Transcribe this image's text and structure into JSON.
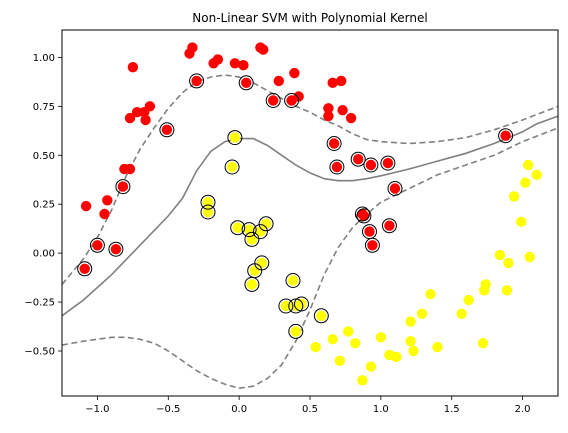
{
  "chart_data": {
    "type": "scatter",
    "title": "Non-Linear SVM with Polynomial Kernel",
    "xlabel": "",
    "ylabel": "",
    "xlim": [
      -1.25,
      2.25
    ],
    "ylim": [
      -0.73,
      1.14
    ],
    "x_ticks": [
      -1.0,
      -0.5,
      0.0,
      0.5,
      1.0,
      1.5,
      2.0
    ],
    "x_tick_labels": [
      "−1.0",
      "−0.5",
      "0.0",
      "0.5",
      "1.0",
      "1.5",
      "2.0"
    ],
    "y_ticks": [
      -0.5,
      -0.25,
      0.0,
      0.25,
      0.5,
      0.75,
      1.0
    ],
    "y_tick_labels": [
      "−0.50",
      "−0.25",
      "0.00",
      "0.25",
      "0.50",
      "0.75",
      "1.00"
    ],
    "grid": false,
    "colors": {
      "class_0": "#ff0000",
      "class_1": "#ffff00",
      "boundary": "#808080"
    },
    "series": [
      {
        "class": 0,
        "color": "#ff0000",
        "points": [
          [
            -1.08,
            0.24
          ],
          [
            -1.0,
            0.04
          ],
          [
            -0.95,
            0.2
          ],
          [
            -0.93,
            0.27
          ],
          [
            -0.87,
            0.02
          ],
          [
            -0.82,
            0.34
          ],
          [
            -0.81,
            0.43
          ],
          [
            -0.77,
            0.43
          ],
          [
            -0.77,
            0.69
          ],
          [
            -0.75,
            0.95
          ],
          [
            -0.72,
            0.72
          ],
          [
            -0.67,
            0.72
          ],
          [
            -0.66,
            0.68
          ],
          [
            -0.63,
            0.75
          ],
          [
            -0.51,
            0.63
          ],
          [
            -0.35,
            1.02
          ],
          [
            -0.33,
            1.05
          ],
          [
            -0.3,
            0.88
          ],
          [
            -0.18,
            0.97
          ],
          [
            -0.15,
            0.99
          ],
          [
            -0.03,
            0.97
          ],
          [
            0.03,
            0.96
          ],
          [
            0.05,
            0.87
          ],
          [
            0.15,
            1.05
          ],
          [
            0.17,
            1.04
          ],
          [
            0.24,
            0.78
          ],
          [
            0.28,
            0.88
          ],
          [
            0.37,
            0.78
          ],
          [
            0.39,
            0.92
          ],
          [
            0.42,
            0.8
          ],
          [
            0.63,
            0.74
          ],
          [
            0.63,
            0.7
          ],
          [
            0.66,
            0.87
          ],
          [
            0.67,
            0.56
          ],
          [
            0.69,
            0.44
          ],
          [
            0.72,
            0.88
          ],
          [
            0.73,
            0.73
          ],
          [
            0.79,
            0.69
          ],
          [
            0.84,
            0.48
          ],
          [
            0.87,
            0.2
          ],
          [
            0.88,
            0.19
          ],
          [
            0.92,
            0.11
          ],
          [
            0.93,
            0.45
          ],
          [
            0.94,
            0.04
          ],
          [
            1.05,
            0.46
          ],
          [
            1.06,
            0.14
          ],
          [
            1.1,
            0.33
          ],
          [
            -1.09,
            -0.08
          ],
          [
            1.88,
            0.6
          ]
        ]
      },
      {
        "class": 1,
        "color": "#ffff00",
        "points": [
          [
            -0.03,
            0.59
          ],
          [
            -0.05,
            0.44
          ],
          [
            -0.22,
            0.26
          ],
          [
            -0.22,
            0.21
          ],
          [
            -0.01,
            0.13
          ],
          [
            0.07,
            0.12
          ],
          [
            0.09,
            0.07
          ],
          [
            0.15,
            0.11
          ],
          [
            0.19,
            0.15
          ],
          [
            0.16,
            -0.05
          ],
          [
            0.11,
            -0.09
          ],
          [
            0.09,
            -0.16
          ],
          [
            0.38,
            -0.14
          ],
          [
            0.33,
            -0.27
          ],
          [
            0.4,
            -0.27
          ],
          [
            0.44,
            -0.26
          ],
          [
            0.4,
            -0.4
          ],
          [
            0.58,
            -0.32
          ],
          [
            0.54,
            -0.48
          ],
          [
            0.66,
            -0.44
          ],
          [
            0.71,
            -0.55
          ],
          [
            0.77,
            -0.4
          ],
          [
            0.82,
            -0.46
          ],
          [
            0.87,
            -0.65
          ],
          [
            0.93,
            -0.58
          ],
          [
            1.0,
            -0.43
          ],
          [
            1.06,
            -0.52
          ],
          [
            1.11,
            -0.53
          ],
          [
            1.21,
            -0.45
          ],
          [
            1.21,
            -0.35
          ],
          [
            1.23,
            -0.5
          ],
          [
            1.29,
            -0.31
          ],
          [
            1.35,
            -0.21
          ],
          [
            1.4,
            -0.48
          ],
          [
            1.57,
            -0.31
          ],
          [
            1.62,
            -0.24
          ],
          [
            1.72,
            -0.46
          ],
          [
            1.73,
            -0.19
          ],
          [
            1.74,
            -0.16
          ],
          [
            1.84,
            -0.01
          ],
          [
            1.89,
            -0.19
          ],
          [
            1.9,
            -0.05
          ],
          [
            1.94,
            0.29
          ],
          [
            1.99,
            0.16
          ],
          [
            2.02,
            0.36
          ],
          [
            2.04,
            0.45
          ],
          [
            2.05,
            -0.02
          ],
          [
            2.1,
            0.4
          ]
        ]
      }
    ],
    "support_vectors": [
      [
        -1.09,
        -0.08
      ],
      [
        -1.0,
        0.04
      ],
      [
        -0.87,
        0.02
      ],
      [
        -0.82,
        0.34
      ],
      [
        -0.51,
        0.63
      ],
      [
        -0.3,
        0.88
      ],
      [
        0.05,
        0.87
      ],
      [
        0.24,
        0.78
      ],
      [
        0.37,
        0.78
      ],
      [
        0.67,
        0.56
      ],
      [
        0.69,
        0.44
      ],
      [
        0.84,
        0.48
      ],
      [
        0.87,
        0.2
      ],
      [
        0.88,
        0.19
      ],
      [
        0.92,
        0.11
      ],
      [
        0.93,
        0.45
      ],
      [
        0.94,
        0.04
      ],
      [
        1.05,
        0.46
      ],
      [
        1.06,
        0.14
      ],
      [
        1.1,
        0.33
      ],
      [
        1.88,
        0.6
      ],
      [
        -0.03,
        0.59
      ],
      [
        -0.05,
        0.44
      ],
      [
        -0.22,
        0.26
      ],
      [
        -0.22,
        0.21
      ],
      [
        -0.01,
        0.13
      ],
      [
        0.07,
        0.12
      ],
      [
        0.09,
        0.07
      ],
      [
        0.15,
        0.11
      ],
      [
        0.19,
        0.15
      ],
      [
        0.16,
        -0.05
      ],
      [
        0.11,
        -0.09
      ],
      [
        0.09,
        -0.16
      ],
      [
        0.38,
        -0.14
      ],
      [
        0.33,
        -0.27
      ],
      [
        0.4,
        -0.27
      ],
      [
        0.44,
        -0.26
      ],
      [
        0.4,
        -0.4
      ],
      [
        0.58,
        -0.32
      ]
    ],
    "decision_boundary": [
      [
        -1.25,
        -0.32
      ],
      [
        -1.1,
        -0.24
      ],
      [
        -0.9,
        -0.11
      ],
      [
        -0.7,
        0.04
      ],
      [
        -0.5,
        0.19
      ],
      [
        -0.4,
        0.28
      ],
      [
        -0.3,
        0.42
      ],
      [
        -0.2,
        0.52
      ],
      [
        -0.1,
        0.57
      ],
      [
        0.0,
        0.585
      ],
      [
        0.1,
        0.585
      ],
      [
        0.2,
        0.55
      ],
      [
        0.3,
        0.5
      ],
      [
        0.4,
        0.45
      ],
      [
        0.5,
        0.41
      ],
      [
        0.6,
        0.38
      ],
      [
        0.7,
        0.37
      ],
      [
        0.8,
        0.37
      ],
      [
        0.9,
        0.38
      ],
      [
        1.0,
        0.395
      ],
      [
        1.2,
        0.43
      ],
      [
        1.4,
        0.47
      ],
      [
        1.6,
        0.51
      ],
      [
        1.8,
        0.56
      ],
      [
        2.0,
        0.62
      ],
      [
        2.1,
        0.66
      ],
      [
        2.25,
        0.7
      ]
    ],
    "margin_upper": [
      [
        -1.25,
        -0.16
      ],
      [
        -1.1,
        -0.03
      ],
      [
        -1.0,
        0.08
      ],
      [
        -0.9,
        0.22
      ],
      [
        -0.8,
        0.39
      ],
      [
        -0.7,
        0.53
      ],
      [
        -0.6,
        0.64
      ],
      [
        -0.5,
        0.74
      ],
      [
        -0.4,
        0.82
      ],
      [
        -0.3,
        0.875
      ],
      [
        -0.2,
        0.9
      ],
      [
        -0.1,
        0.91
      ],
      [
        0.0,
        0.9
      ],
      [
        0.1,
        0.87
      ],
      [
        0.2,
        0.83
      ],
      [
        0.3,
        0.79
      ],
      [
        0.4,
        0.75
      ],
      [
        0.5,
        0.72
      ],
      [
        0.6,
        0.68
      ],
      [
        0.7,
        0.65
      ],
      [
        0.8,
        0.61
      ],
      [
        0.9,
        0.58
      ],
      [
        1.0,
        0.57
      ],
      [
        1.2,
        0.56
      ],
      [
        1.4,
        0.57
      ],
      [
        1.6,
        0.59
      ],
      [
        1.8,
        0.63
      ],
      [
        2.0,
        0.68
      ],
      [
        2.25,
        0.75
      ]
    ],
    "margin_lower": [
      [
        -1.25,
        -0.47
      ],
      [
        -1.1,
        -0.45
      ],
      [
        -0.9,
        -0.43
      ],
      [
        -0.8,
        -0.43
      ],
      [
        -0.7,
        -0.44
      ],
      [
        -0.6,
        -0.46
      ],
      [
        -0.5,
        -0.5
      ],
      [
        -0.4,
        -0.55
      ],
      [
        -0.3,
        -0.6
      ],
      [
        -0.2,
        -0.64
      ],
      [
        -0.1,
        -0.67
      ],
      [
        0.0,
        -0.69
      ],
      [
        0.1,
        -0.68
      ],
      [
        0.2,
        -0.64
      ],
      [
        0.3,
        -0.57
      ],
      [
        0.4,
        -0.45
      ],
      [
        0.5,
        -0.29
      ],
      [
        0.6,
        -0.11
      ],
      [
        0.7,
        0.03
      ],
      [
        0.8,
        0.13
      ],
      [
        0.9,
        0.2
      ],
      [
        1.0,
        0.26
      ],
      [
        1.2,
        0.33
      ],
      [
        1.4,
        0.4
      ],
      [
        1.6,
        0.45
      ],
      [
        1.8,
        0.5
      ],
      [
        2.0,
        0.57
      ],
      [
        2.25,
        0.64
      ]
    ]
  }
}
